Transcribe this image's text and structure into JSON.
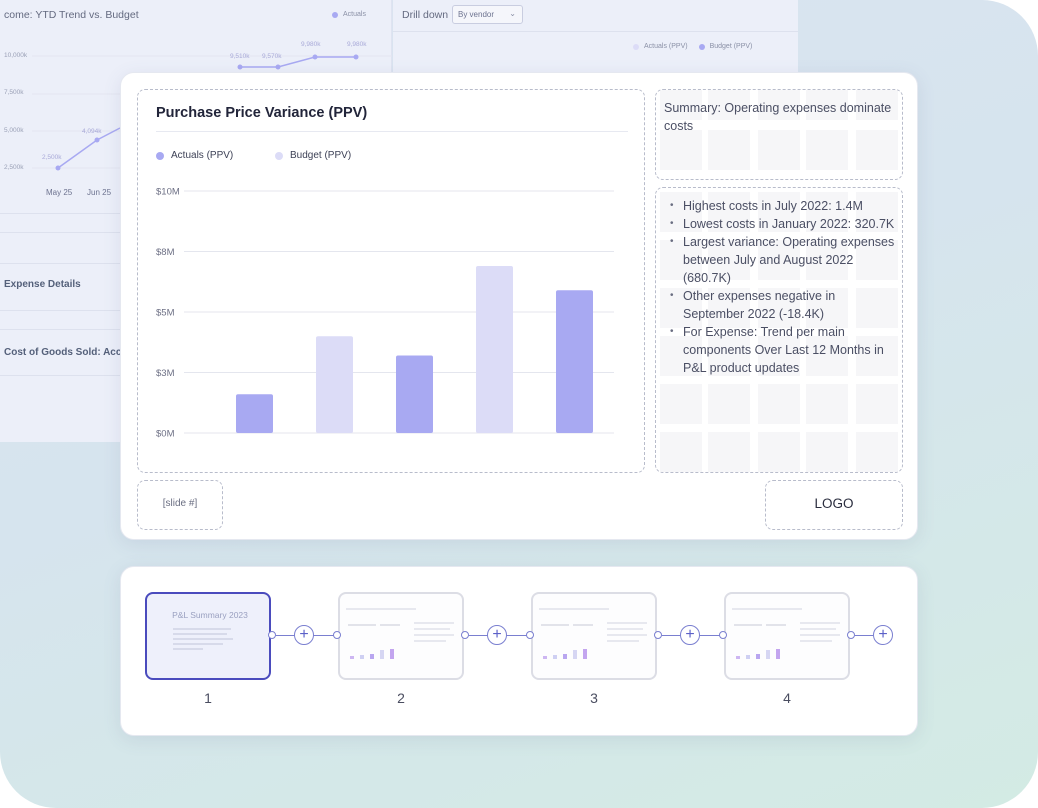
{
  "background": {
    "left_panel": {
      "title": "come: YTD Trend vs. Budget",
      "legend": "Actuals",
      "y_ticks": [
        "10,000k",
        "7,500k",
        "5,000k",
        "2,500k"
      ],
      "x_ticks": [
        "May 25",
        "Jun 25"
      ],
      "point_labels": [
        "2,500k",
        "4,094k",
        "9,510k",
        "9,570k",
        "9,980k",
        "9,980k"
      ],
      "rows": [
        "Expense Details",
        "Cost of Goods Sold: Acc"
      ]
    },
    "right_panel": {
      "drill_label": "Drill down",
      "drill_value": "By vendor",
      "legend": [
        "Actuals (PPV)",
        "Budget (PPV)"
      ]
    }
  },
  "slide": {
    "chart": {
      "title": "Purchase Price Variance (PPV)",
      "legend": [
        "Actuals (PPV)",
        "Budget (PPV)"
      ],
      "y_ticks": [
        "$10M",
        "$8M",
        "$5M",
        "$3M",
        "$0M"
      ]
    },
    "summary": "Summary: Operating expenses dominate costs",
    "bullets": [
      "Highest costs in July 2022: 1.4M",
      "Lowest costs in January 2022: 320.7K",
      "Largest variance: Operating expenses between July and August 2022 (680.7K)",
      "Other expenses negative in September 2022 (-18.4K)",
      "For Expense: Trend per main components Over Last 12 Months in P&L product updates"
    ],
    "slide_number": "[slide #]",
    "logo": "LOGO"
  },
  "thumbnails": [
    {
      "number": "1",
      "title": "P&L Summary 2023",
      "active": true
    },
    {
      "number": "2",
      "title": "",
      "active": false
    },
    {
      "number": "3",
      "title": "",
      "active": false
    },
    {
      "number": "4",
      "title": "",
      "active": false
    }
  ],
  "colors": {
    "actuals": "#a8a9f2",
    "budget": "#dcdcf7",
    "accent": "#4a4bbd"
  },
  "chart_data": {
    "type": "bar",
    "title": "Purchase Price Variance (PPV)",
    "ylim": [
      0,
      10
    ],
    "y_ticks": [
      0,
      2.5,
      5,
      7.5,
      10
    ],
    "series_names": [
      "Actuals (PPV)",
      "Budget (PPV)"
    ],
    "bars": [
      {
        "series": "Actuals (PPV)",
        "value": 1.6
      },
      {
        "series": "Budget (PPV)",
        "value": 4.0
      },
      {
        "series": "Actuals (PPV)",
        "value": 3.2
      },
      {
        "series": "Budget (PPV)",
        "value": 6.9
      },
      {
        "series": "Actuals (PPV)",
        "value": 5.9
      }
    ],
    "grid": true,
    "legend_position": "top-left"
  }
}
